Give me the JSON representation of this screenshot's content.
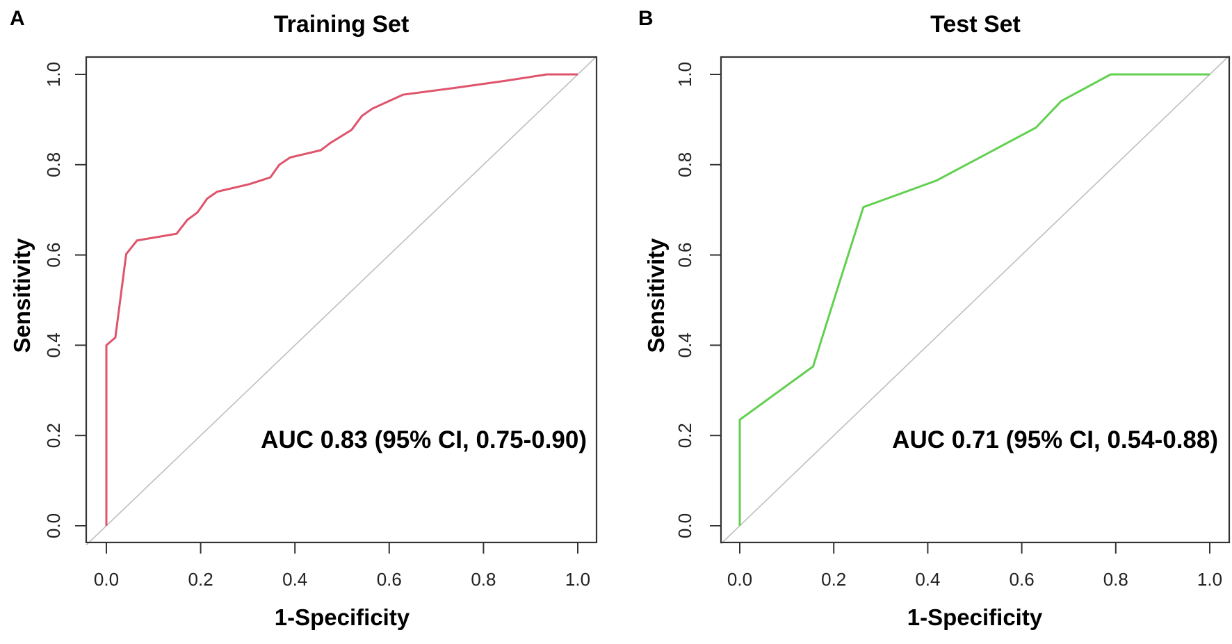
{
  "chart_data": [
    {
      "type": "line",
      "panel_label": "A",
      "title": "Training Set",
      "xlabel": "1-Specificity",
      "ylabel": "Sensitivity",
      "xlim": [
        0,
        1
      ],
      "ylim": [
        0,
        1
      ],
      "xticks": [
        "0.0",
        "0.2",
        "0.4",
        "0.6",
        "0.8",
        "1.0"
      ],
      "yticks": [
        "0.0",
        "0.2",
        "0.4",
        "0.6",
        "0.8",
        "1.0"
      ],
      "grid": false,
      "color": "#DF536B",
      "reference_line": {
        "from": [
          0,
          0
        ],
        "to": [
          1,
          1
        ],
        "color": "#BEBEBE"
      },
      "annotation": "AUC 0.83 (95% CI, 0.75-0.90)",
      "step_points": [
        [
          0,
          0
        ],
        [
          0,
          0.4
        ],
        [
          0.019,
          0.417
        ],
        [
          0.042,
          0.602
        ],
        [
          0.065,
          0.632
        ],
        [
          0.149,
          0.647
        ],
        [
          0.172,
          0.678
        ],
        [
          0.193,
          0.694
        ],
        [
          0.214,
          0.725
        ],
        [
          0.235,
          0.74
        ],
        [
          0.304,
          0.757
        ],
        [
          0.348,
          0.772
        ],
        [
          0.367,
          0.8
        ],
        [
          0.39,
          0.816
        ],
        [
          0.455,
          0.832
        ],
        [
          0.475,
          0.848
        ],
        [
          0.52,
          0.877
        ],
        [
          0.542,
          0.908
        ],
        [
          0.564,
          0.924
        ],
        [
          0.629,
          0.955
        ],
        [
          0.738,
          0.97
        ],
        [
          0.847,
          0.986
        ],
        [
          0.934,
          1.0
        ],
        [
          1.0,
          1.0
        ]
      ]
    },
    {
      "type": "line",
      "panel_label": "B",
      "title": "Test Set",
      "xlabel": "1-Specificity",
      "ylabel": "Sensitivity",
      "xlim": [
        0,
        1
      ],
      "ylim": [
        0,
        1
      ],
      "xticks": [
        "0.0",
        "0.2",
        "0.4",
        "0.6",
        "0.8",
        "1.0"
      ],
      "yticks": [
        "0.0",
        "0.2",
        "0.4",
        "0.6",
        "0.8",
        "1.0"
      ],
      "grid": false,
      "color": "#61D04F",
      "reference_line": {
        "from": [
          0,
          0
        ],
        "to": [
          1,
          1
        ],
        "color": "#BEBEBE"
      },
      "annotation": "AUC 0.71 (95% CI, 0.54-0.88)",
      "step_points": [
        [
          0,
          0
        ],
        [
          0,
          0.235
        ],
        [
          0.156,
          0.353
        ],
        [
          0.209,
          0.529
        ],
        [
          0.263,
          0.706
        ],
        [
          0.419,
          0.765
        ],
        [
          0.63,
          0.882
        ],
        [
          0.684,
          0.941
        ],
        [
          0.789,
          1.0
        ],
        [
          1.0,
          1.0
        ]
      ]
    }
  ]
}
